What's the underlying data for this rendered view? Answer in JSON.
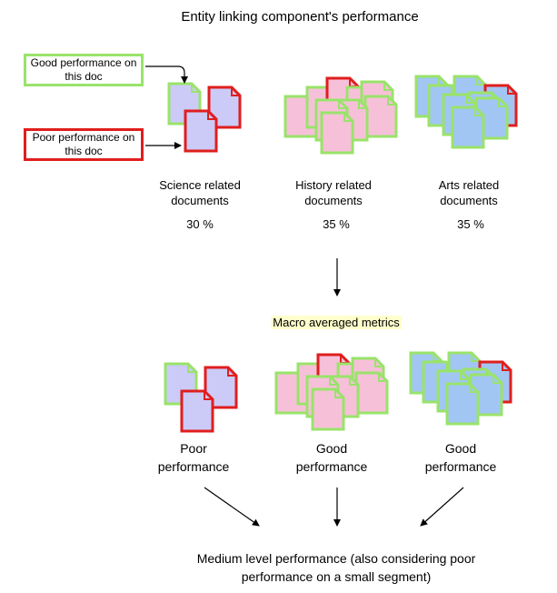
{
  "title": "Entity linking component's performance",
  "legend": {
    "good": "Good performance on this doc",
    "poor": "Poor performance on this doc"
  },
  "groups": [
    {
      "label": "Science related documents",
      "share": "30 %"
    },
    {
      "label": "History related documents",
      "share": "35 %"
    },
    {
      "label": "Arts related documents",
      "share": "35 %"
    }
  ],
  "macro_label": "Macro averaged metrics",
  "results": [
    "Poor performance",
    "Good performance",
    "Good performance"
  ],
  "conclusion": "Medium level performance (also considering poor performance on a small segment)",
  "colors": {
    "good_border": "#99e36a",
    "poor_border": "#e01e1e",
    "science_fill": "#cccbf7",
    "history_fill": "#f7c0d9",
    "arts_fill": "#a2c6f3",
    "highlight_bg": "#ffffcc"
  }
}
